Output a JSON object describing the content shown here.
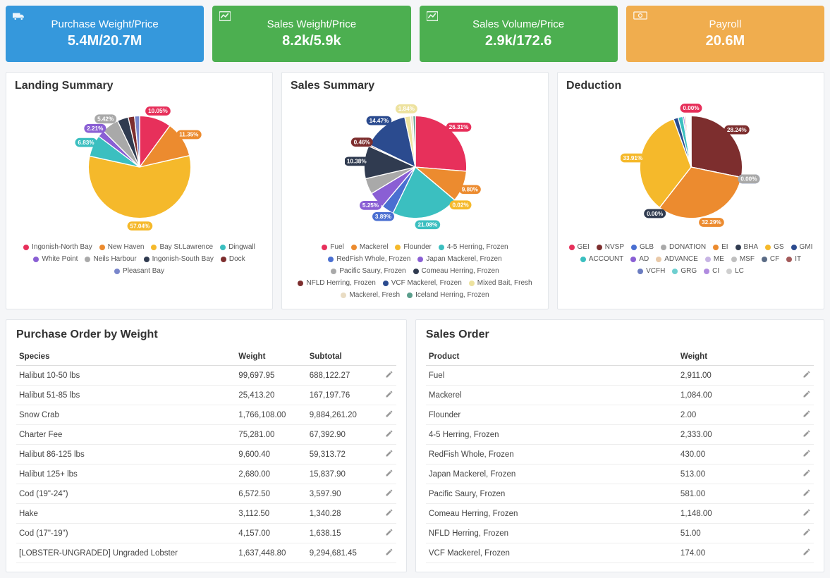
{
  "stats": [
    {
      "title": "Purchase Weight/Price",
      "value": "5.4M/20.7M",
      "color": "#3598dc",
      "icon": "truck"
    },
    {
      "title": "Sales Weight/Price",
      "value": "8.2k/5.9k",
      "color": "#4caf50",
      "icon": "chart"
    },
    {
      "title": "Sales Volume/Price",
      "value": "2.9k/172.6",
      "color": "#4caf50",
      "icon": "chart"
    },
    {
      "title": "Payroll",
      "value": "20.6M",
      "color": "#f0ad4e",
      "icon": "cash"
    }
  ],
  "charts": {
    "landing": {
      "title": "Landing Summary",
      "slices": [
        {
          "label": "Ingonish-North Bay",
          "pct": 10.05,
          "color": "#e7305b"
        },
        {
          "label": "New Haven",
          "pct": 11.35,
          "color": "#ec8b2f"
        },
        {
          "label": "Bay St.Lawrence",
          "pct": 57.04,
          "color": "#f5b92b"
        },
        {
          "label": "Dingwall",
          "pct": 6.83,
          "color": "#3bbfc0"
        },
        {
          "label": "White Point",
          "pct": 2.21,
          "color": "#8a5fd4"
        },
        {
          "label": "Neils Harbour",
          "pct": 5.42,
          "color": "#a9a9a9"
        },
        {
          "label": "Ingonish-South Bay",
          "pct": 3.5,
          "color": "#303b50"
        },
        {
          "label": "Dock",
          "pct": 2.0,
          "color": "#7d2e2e"
        },
        {
          "label": "Pleasant Bay",
          "pct": 1.6,
          "color": "#7986cb"
        }
      ],
      "callouts": [
        "10.05%",
        "11.35%",
        "57.04%",
        "6.83%",
        "2.21%",
        "5.42%"
      ]
    },
    "sales": {
      "title": "Sales Summary",
      "slices": [
        {
          "label": "Fuel",
          "pct": 26.31,
          "color": "#e7305b"
        },
        {
          "label": "Mackerel",
          "pct": 9.8,
          "color": "#ec8b2f"
        },
        {
          "label": "Flounder",
          "pct": 0.02,
          "color": "#f5b92b"
        },
        {
          "label": "4-5 Herring, Frozen",
          "pct": 21.08,
          "color": "#3bbfc0"
        },
        {
          "label": "RedFish Whole, Frozen",
          "pct": 3.89,
          "color": "#4a6fd1"
        },
        {
          "label": "Japan Mackerel, Frozen",
          "pct": 5.25,
          "color": "#8a5fd4"
        },
        {
          "label": "Pacific Saury, Frozen",
          "pct": 5.0,
          "color": "#a9a9a9"
        },
        {
          "label": "Comeau Herring, Frozen",
          "pct": 10.38,
          "color": "#303b50"
        },
        {
          "label": "NFLD Herring, Frozen",
          "pct": 0.46,
          "color": "#7d2e2e"
        },
        {
          "label": "VCF Mackerel, Frozen",
          "pct": 14.47,
          "color": "#2b4b8f"
        },
        {
          "label": "Mixed Bait, Fresh",
          "pct": 1.84,
          "color": "#ede29f"
        },
        {
          "label": "Mackerel, Fresh",
          "pct": 0.75,
          "color": "#e9dcc3"
        },
        {
          "label": "Iceland Herring, Frozen",
          "pct": 0.75,
          "color": "#5a9e8c"
        }
      ],
      "callouts": [
        "26.31%",
        "9.80%",
        "0.02%",
        "21.08%",
        "3.89%",
        "5.25%",
        "10.38%",
        "0.46%",
        "14.47%",
        "1.84%"
      ]
    },
    "deduction": {
      "title": "Deduction",
      "slices": [
        {
          "label": "GEI",
          "pct": 0.001,
          "color": "#e7305b"
        },
        {
          "label": "NVSP",
          "pct": 28.24,
          "color": "#7d2e2e"
        },
        {
          "label": "GLB",
          "pct": 0.001,
          "color": "#4a6fd1"
        },
        {
          "label": "DONATION",
          "pct": 0.001,
          "color": "#a9a9a9"
        },
        {
          "label": "EI",
          "pct": 32.29,
          "color": "#ec8b2f"
        },
        {
          "label": "BHA",
          "pct": 0.001,
          "color": "#303b50"
        },
        {
          "label": "GS",
          "pct": 33.91,
          "color": "#f5b92b"
        },
        {
          "label": "GMI",
          "pct": 1.5,
          "color": "#2b4b8f"
        },
        {
          "label": "ACCOUNT",
          "pct": 1.5,
          "color": "#3bbfc0"
        },
        {
          "label": "AD",
          "pct": 0.5,
          "color": "#8a5fd4"
        },
        {
          "label": "ADVANCE",
          "pct": 0.5,
          "color": "#e9c9a8"
        },
        {
          "label": "ME",
          "pct": 0.3,
          "color": "#c7b4e4"
        },
        {
          "label": "MSF",
          "pct": 0.3,
          "color": "#bfbfbf"
        },
        {
          "label": "CF",
          "pct": 0.3,
          "color": "#5a6b85"
        },
        {
          "label": "IT",
          "pct": 0.3,
          "color": "#a35a5a"
        },
        {
          "label": "VCFH",
          "pct": 0.2,
          "color": "#6a7cc0"
        },
        {
          "label": "GRG",
          "pct": 0.1,
          "color": "#6ecfd0"
        },
        {
          "label": "CI",
          "pct": 0.05,
          "color": "#b08bdf"
        },
        {
          "label": "LC",
          "pct": 0.03,
          "color": "#cfcfcf"
        }
      ],
      "callouts": [
        "0.00%",
        "28.24%",
        "0.00%",
        "32.29%",
        "33.91%"
      ]
    }
  },
  "purchase_table": {
    "title": "Purchase Order by Weight",
    "columns": [
      "Species",
      "Weight",
      "Subtotal",
      ""
    ],
    "rows": [
      [
        "Halibut 10-50 lbs",
        "99,697.95",
        "688,122.27"
      ],
      [
        "Halibut 51-85 lbs",
        "25,413.20",
        "167,197.76"
      ],
      [
        "Snow Crab",
        "1,766,108.00",
        "9,884,261.20"
      ],
      [
        "Charter Fee",
        "75,281.00",
        "67,392.90"
      ],
      [
        "Halibut 86-125 lbs",
        "9,600.40",
        "59,313.72"
      ],
      [
        "Halibut 125+ lbs",
        "2,680.00",
        "15,837.90"
      ],
      [
        "Cod (19\"-24\")",
        "6,572.50",
        "3,597.90"
      ],
      [
        "Hake",
        "3,112.50",
        "1,340.28"
      ],
      [
        "Cod (17\"-19\")",
        "4,157.00",
        "1,638.15"
      ],
      [
        "[LOBSTER-UNGRADED] Ungraded Lobster",
        "1,637,448.80",
        "9,294,681.45"
      ]
    ]
  },
  "sales_table": {
    "title": "Sales Order",
    "columns": [
      "Product",
      "Weight",
      ""
    ],
    "rows": [
      [
        "Fuel",
        "2,911.00"
      ],
      [
        "Mackerel",
        "1,084.00"
      ],
      [
        "Flounder",
        "2.00"
      ],
      [
        "4-5 Herring, Frozen",
        "2,333.00"
      ],
      [
        "RedFish Whole, Frozen",
        "430.00"
      ],
      [
        "Japan Mackerel, Frozen",
        "513.00"
      ],
      [
        "Pacific Saury, Frozen",
        "581.00"
      ],
      [
        "Comeau Herring, Frozen",
        "1,148.00"
      ],
      [
        "NFLD Herring, Frozen",
        "51.00"
      ],
      [
        "VCF Mackerel, Frozen",
        "174.00"
      ]
    ]
  }
}
